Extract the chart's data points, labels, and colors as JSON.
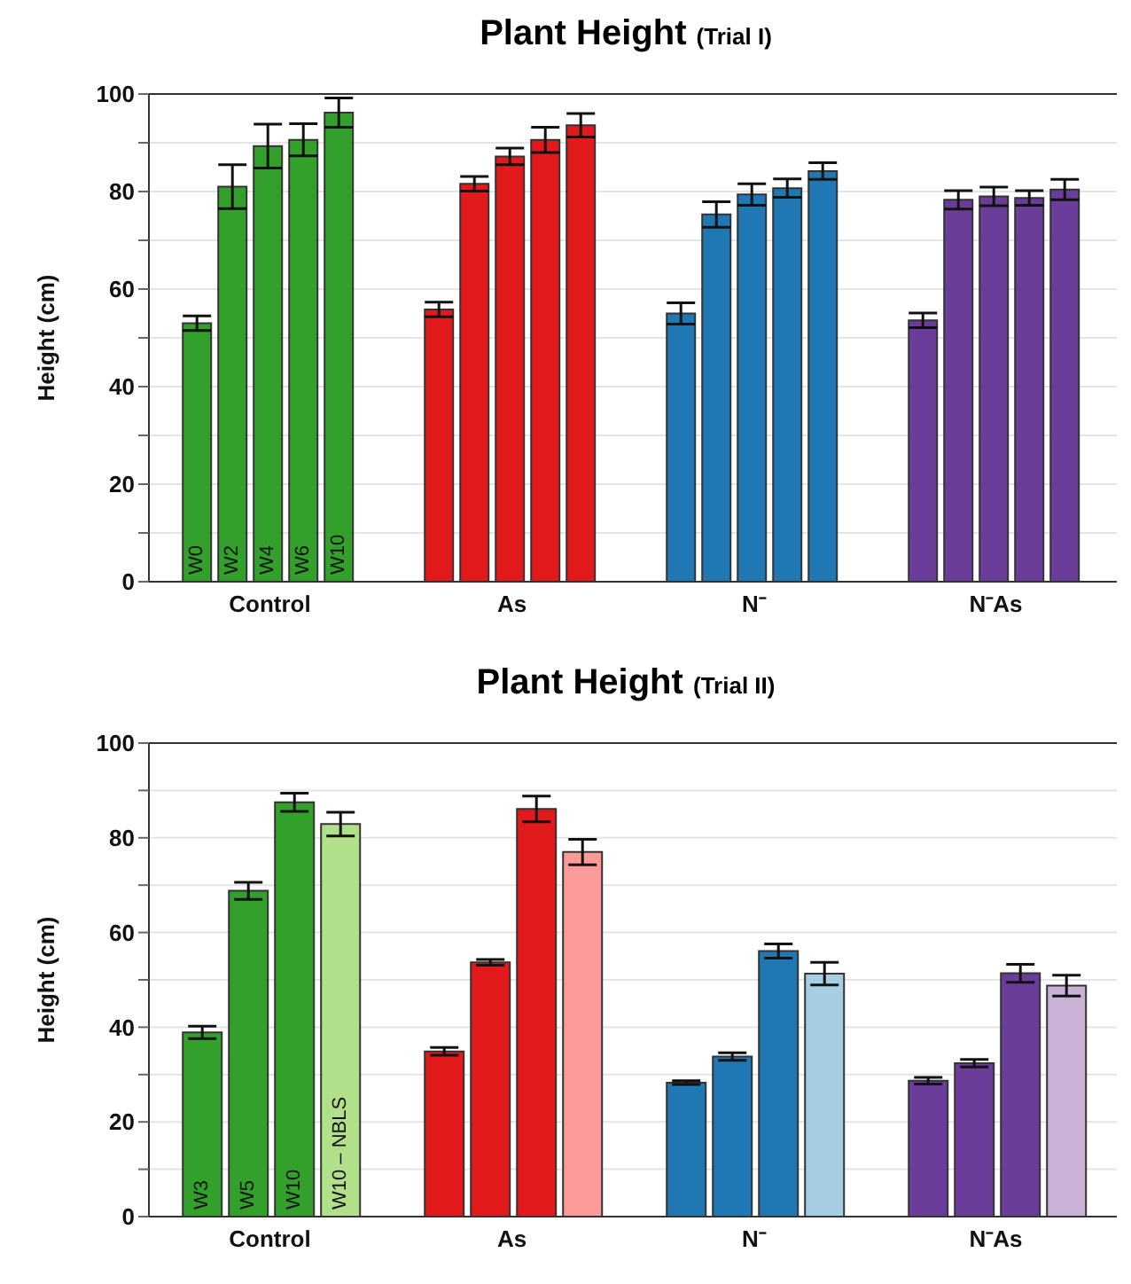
{
  "chart_data": [
    {
      "type": "bar",
      "title": "Plant Height",
      "subtitle": "(Trial I)",
      "ylabel": "Height (cm)",
      "categories": [
        "Control",
        "As",
        "N⁻",
        "N⁻As"
      ],
      "ylim": [
        0,
        100
      ],
      "yticks": [
        0,
        {
          "value": 10,
          "label": null
        },
        20,
        {
          "value": 30,
          "label": null
        },
        40,
        {
          "value": 50,
          "label": null
        },
        60,
        {
          "value": 70,
          "label": null
        },
        80,
        {
          "value": 90,
          "label": null
        },
        100
      ],
      "grid": "y",
      "series": [
        {
          "name": "W0",
          "colors": [
            "#33a02c",
            "#e31a1c",
            "#1f78b4",
            "#6a3d9a"
          ],
          "values": [
            53,
            55.8,
            55,
            53.6
          ],
          "errors": [
            1.5,
            1.5,
            2.2,
            1.5
          ]
        },
        {
          "name": "W2",
          "colors": [
            "#33a02c",
            "#e31a1c",
            "#1f78b4",
            "#6a3d9a"
          ],
          "values": [
            81,
            81.6,
            75.3,
            78.3
          ],
          "errors": [
            4.5,
            1.5,
            2.6,
            1.9
          ]
        },
        {
          "name": "W4",
          "colors": [
            "#33a02c",
            "#e31a1c",
            "#1f78b4",
            "#6a3d9a"
          ],
          "values": [
            89.3,
            87.2,
            79.4,
            79
          ],
          "errors": [
            4.5,
            1.7,
            2.2,
            1.9
          ]
        },
        {
          "name": "W6",
          "colors": [
            "#33a02c",
            "#e31a1c",
            "#1f78b4",
            "#6a3d9a"
          ],
          "values": [
            90.6,
            90.6,
            80.7,
            78.7
          ],
          "errors": [
            3.3,
            2.6,
            1.9,
            1.5
          ]
        },
        {
          "name": "W10",
          "colors": [
            "#33a02c",
            "#e31a1c",
            "#1f78b4",
            "#6a3d9a"
          ],
          "values": [
            96.2,
            93.6,
            84.2,
            80.4
          ],
          "errors": [
            3,
            2.4,
            1.7,
            2.1
          ]
        }
      ]
    },
    {
      "type": "bar",
      "title": "Plant Height",
      "subtitle": "(Trial II)",
      "ylabel": "Height (cm)",
      "categories": [
        "Control",
        "As",
        "N⁻",
        "N⁻As"
      ],
      "ylim": [
        0,
        100
      ],
      "yticks": [
        0,
        {
          "value": 10,
          "label": null
        },
        20,
        {
          "value": 30,
          "label": null
        },
        40,
        {
          "value": 50,
          "label": null
        },
        60,
        {
          "value": 70,
          "label": null
        },
        80,
        {
          "value": 90,
          "label": null
        },
        100
      ],
      "grid": "y",
      "series": [
        {
          "name": "W3",
          "colors": [
            "#33a02c",
            "#e31a1c",
            "#1f78b4",
            "#6a3d9a"
          ],
          "values": [
            38.9,
            34.9,
            28.3,
            28.7
          ],
          "errors": [
            1.3,
            0.8,
            0.4,
            0.7
          ]
        },
        {
          "name": "W5",
          "colors": [
            "#33a02c",
            "#e31a1c",
            "#1f78b4",
            "#6a3d9a"
          ],
          "values": [
            68.8,
            53.7,
            33.8,
            32.4
          ],
          "errors": [
            1.8,
            0.6,
            0.8,
            0.8
          ]
        },
        {
          "name": "W10",
          "colors": [
            "#33a02c",
            "#e31a1c",
            "#1f78b4",
            "#6a3d9a"
          ],
          "values": [
            87.5,
            86.1,
            56.1,
            51.4
          ],
          "errors": [
            1.9,
            2.7,
            1.5,
            1.9
          ]
        },
        {
          "name": "W10 – NBLS",
          "colors": [
            "#b2df8a",
            "#fb9a99",
            "#a6cee3",
            "#cab2d6"
          ],
          "values": [
            82.9,
            77,
            51.3,
            48.8
          ],
          "errors": [
            2.5,
            2.7,
            2.4,
            2.2
          ]
        }
      ]
    }
  ]
}
